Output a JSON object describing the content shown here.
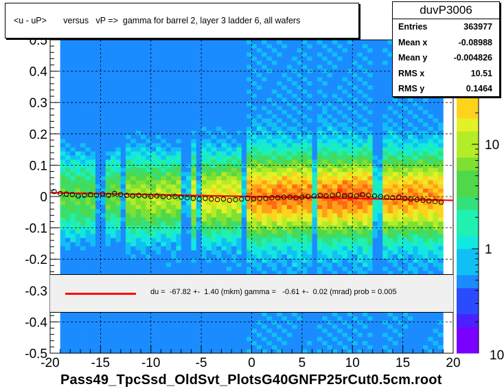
{
  "title": "<u - uP>       versus   vP =>  gamma for barrel 2, layer 3 ladder 6, all wafers",
  "stats": {
    "name": "duvP3006",
    "rows": [
      {
        "key": "Entries",
        "value": "363977"
      },
      {
        "key": "Mean x",
        "value": "-0.08988"
      },
      {
        "key": "Mean y",
        "value": "-0.004826"
      },
      {
        "key": "RMS x",
        "value": "10.51"
      },
      {
        "key": "RMS y",
        "value": "0.1464"
      }
    ]
  },
  "fit": {
    "text": "du =  -67.82 +-  1.40 (mkm) gamma =   -0.61 +-  0.02 (mrad) prob = 0.005",
    "line_color": "#ff0000"
  },
  "x_axis_title": "Pass49_TpcSsd_OldSvt_PlotsG40GNFP25rCut0.5cm.root",
  "chart_data": {
    "type": "heatmap",
    "title": "<u - uP>       versus   vP =>  gamma for barrel 2, layer 3 ladder 6, all wafers",
    "xlim": [
      -20,
      20
    ],
    "ylim": [
      -0.5,
      0.5
    ],
    "x_ticks": [
      -20,
      -15,
      -10,
      -5,
      0,
      5,
      10,
      15,
      20
    ],
    "x_tick_labels": [
      "-20",
      "-15",
      "-10",
      "-5",
      "0",
      "5",
      "10",
      "15",
      "20"
    ],
    "y_ticks": [
      -0.5,
      -0.4,
      -0.3,
      -0.2,
      -0.1,
      0,
      0.1,
      0.2,
      0.3,
      0.4,
      0.5
    ],
    "y_tick_labels": [
      "-0.5",
      "-0.4",
      "-0.3",
      "-0.2",
      "-0.1",
      "0",
      "0.1",
      "0.2",
      "0.3",
      "0.4",
      "0.5"
    ],
    "z_scale": "log",
    "z_ticks": [
      1,
      10
    ],
    "z_tick_labels": [
      "1",
      "10"
    ],
    "z_min_label": "10",
    "grid": true,
    "profile_series": {
      "name": "profile",
      "x": [
        -19.6,
        -19.0,
        -18.4,
        -17.8,
        -17.2,
        -16.6,
        -16.0,
        -15.4,
        -14.8,
        -14.2,
        -13.6,
        -13.0,
        -12.4,
        -11.8,
        -11.2,
        -10.6,
        -10.0,
        -9.4,
        -8.8,
        -8.2,
        -7.6,
        -7.0,
        -6.4,
        -5.8,
        -5.2,
        -4.6,
        -4.0,
        -3.4,
        -2.8,
        -2.2,
        -1.6,
        -1.0,
        -0.4,
        0.2,
        0.8,
        1.4,
        2.0,
        2.6,
        3.2,
        3.8,
        4.4,
        5.0,
        5.6,
        6.2,
        6.8,
        7.4,
        8.0,
        8.6,
        9.2,
        9.8,
        10.4,
        11.0,
        11.6,
        12.2,
        12.8,
        13.4,
        14.0,
        14.6,
        15.2,
        15.8,
        16.4,
        17.0,
        17.6,
        18.2,
        18.8
      ],
      "y": [
        0.016,
        0.01,
        0.008,
        0.006,
        0.002,
        0.004,
        0.006,
        0.004,
        0.008,
        0.004,
        0.01,
        0.006,
        0.004,
        0.002,
        0.004,
        0.002,
        0.0,
        0.002,
        0.0,
        -0.002,
        0.0,
        -0.002,
        -0.004,
        -0.006,
        -0.008,
        -0.006,
        -0.008,
        -0.01,
        -0.008,
        -0.012,
        -0.01,
        -0.008,
        -0.006,
        -0.008,
        -0.006,
        -0.006,
        -0.004,
        -0.004,
        -0.002,
        -0.002,
        -0.004,
        -0.002,
        0.0,
        0.002,
        0.004,
        0.002,
        0.004,
        0.006,
        0.002,
        0.004,
        0.002,
        0.006,
        0.004,
        0.002,
        0.0,
        -0.002,
        -0.004,
        -0.002,
        -0.006,
        -0.008,
        -0.01,
        -0.012,
        -0.014,
        -0.016,
        -0.018
      ]
    },
    "fit_line": {
      "x": [
        -20,
        20
      ],
      "y": [
        0.0122,
        -0.0122
      ],
      "color": "#ff0000"
    }
  }
}
